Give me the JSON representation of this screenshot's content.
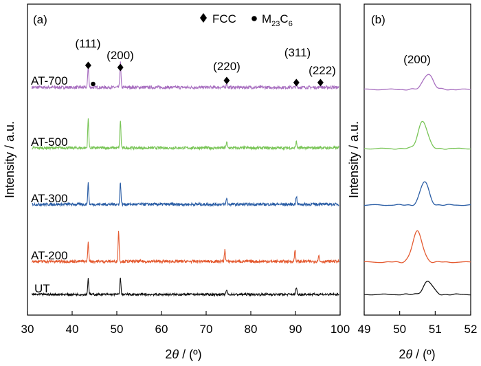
{
  "chart_data": [
    {
      "panel": "(a)",
      "type": "line",
      "xlabel_prefix": "2",
      "xlabel_theta": "θ",
      "xlabel_suffix": " / (º)",
      "ylabel": "Intensity / a.u.",
      "xlim": [
        30,
        100
      ],
      "x_ticks": [
        "30",
        "40",
        "50",
        "60",
        "70",
        "80",
        "90",
        "100"
      ],
      "legend": {
        "fcc_label": "FCC",
        "carbide_prefix": "M",
        "carbide_sub1": "23",
        "carbide_mid": "C",
        "carbide_sub2": "6",
        "placement": "top"
      },
      "peak_positions": {
        "(111)": 43.6,
        "(200)": 50.8,
        "(220)": 74.6,
        "(311)": 90.2,
        "(222)": 95.6,
        "M23C6": 45.0
      },
      "peak_labels": [
        "(111)",
        "(200)",
        "(220)",
        "(311)",
        "(222)"
      ],
      "series": [
        {
          "name": "AT-700",
          "color": "#a86fc0",
          "peaks": [
            [
              43.6,
              32
            ],
            [
              50.8,
              36
            ],
            [
              74.6,
              6
            ],
            [
              90.2,
              5
            ],
            [
              95.6,
              2
            ]
          ],
          "noise": 2.2
        },
        {
          "name": "AT-500",
          "color": "#79c557",
          "peaks": [
            [
              43.6,
              42
            ],
            [
              50.8,
              40
            ],
            [
              74.6,
              9
            ],
            [
              90.2,
              9
            ],
            [
              95.6,
              2
            ]
          ],
          "noise": 2.0
        },
        {
          "name": "AT-300",
          "color": "#2a5da5",
          "peaks": [
            [
              43.6,
              30
            ],
            [
              50.8,
              32
            ],
            [
              74.6,
              9
            ],
            [
              90.2,
              12
            ],
            [
              95.6,
              2
            ]
          ],
          "noise": 2.0
        },
        {
          "name": "AT-200",
          "color": "#e45a30",
          "peaks": [
            [
              43.6,
              27
            ],
            [
              50.4,
              44
            ],
            [
              74.2,
              17
            ],
            [
              89.9,
              17
            ],
            [
              95.2,
              9
            ]
          ],
          "noise": 2.0
        },
        {
          "name": "UT",
          "color": "#111111",
          "peaks": [
            [
              43.6,
              23
            ],
            [
              50.8,
              24
            ],
            [
              74.6,
              7
            ],
            [
              90.2,
              11
            ],
            [
              95.6,
              1
            ]
          ],
          "noise": 1.6
        }
      ]
    },
    {
      "panel": "(b)",
      "type": "line",
      "title": "(200)",
      "xlabel_prefix": "2",
      "xlabel_theta": "θ",
      "xlabel_suffix": " / (º)",
      "ylabel": "Intensity / a.u.",
      "xlim": [
        49,
        52
      ],
      "x_ticks": [
        "49",
        "50",
        "51",
        "52"
      ],
      "series": [
        {
          "name": "AT-700",
          "color": "#a86fc0",
          "center": 50.8,
          "height": 23,
          "width": 0.13
        },
        {
          "name": "AT-500",
          "color": "#79c557",
          "center": 50.65,
          "height": 40,
          "width": 0.13
        },
        {
          "name": "AT-300",
          "color": "#2a5da5",
          "center": 50.7,
          "height": 34,
          "width": 0.12
        },
        {
          "name": "AT-200",
          "color": "#e45a30",
          "center": 50.5,
          "height": 44,
          "width": 0.14
        },
        {
          "name": "UT",
          "color": "#111111",
          "center": 50.8,
          "height": 19,
          "width": 0.13
        }
      ]
    }
  ]
}
